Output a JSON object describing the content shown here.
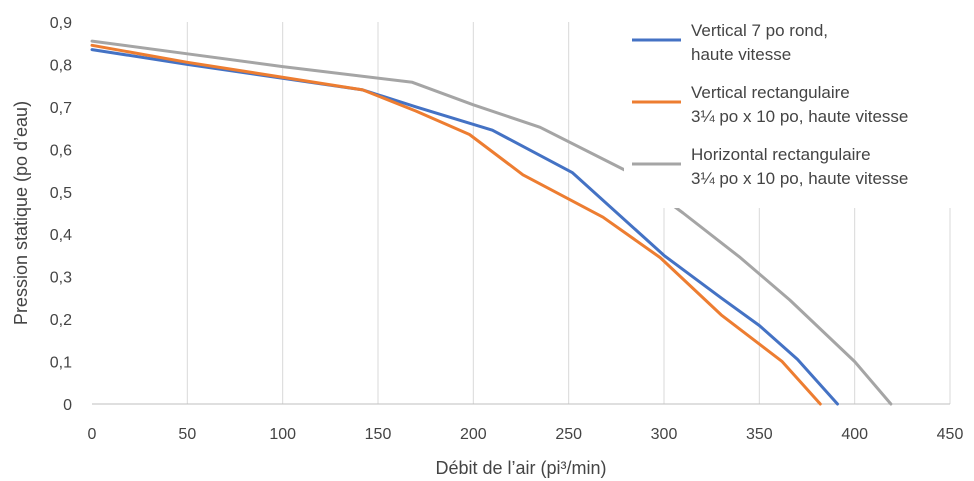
{
  "chart_data": {
    "type": "line",
    "title": "",
    "xlabel": "Débit de l’air (pi³/min)",
    "ylabel": "Pression statique  (po d’eau)",
    "xlim": [
      0,
      450
    ],
    "ylim": [
      0,
      0.9
    ],
    "x_ticks": [
      "0",
      "50",
      "100",
      "150",
      "200",
      "250",
      "300",
      "350",
      "400",
      "450"
    ],
    "y_ticks": [
      "0",
      "0,1",
      "0,2",
      "0,3",
      "0,4",
      "0,5",
      "0,6",
      "0,7",
      "0,8",
      "0,9"
    ],
    "grid": "vertical",
    "legend_position": "top-right",
    "series": [
      {
        "name": "Vertical 7 po rond, haute vitesse",
        "legend_lines": [
          "Vertical 7 po rond,",
          "haute vitesse"
        ],
        "color": "#4472C4",
        "points": [
          [
            0,
            0.835
          ],
          [
            50,
            0.8
          ],
          [
            142,
            0.74
          ],
          [
            170,
            0.7
          ],
          [
            210,
            0.645
          ],
          [
            252,
            0.545
          ],
          [
            300,
            0.35
          ],
          [
            330,
            0.25
          ],
          [
            350,
            0.185
          ],
          [
            370,
            0.105
          ],
          [
            391,
            0
          ]
        ]
      },
      {
        "name": "Vertical rectangulaire 3¼ po x 10 po, haute vitesse",
        "legend_lines": [
          "Vertical rectangulaire",
          "3¼ po x 10 po, haute vitesse"
        ],
        "color": "#ED7D31",
        "points": [
          [
            0,
            0.845
          ],
          [
            50,
            0.805
          ],
          [
            142,
            0.74
          ],
          [
            170,
            0.69
          ],
          [
            198,
            0.635
          ],
          [
            226,
            0.54
          ],
          [
            268,
            0.44
          ],
          [
            298,
            0.345
          ],
          [
            330,
            0.21
          ],
          [
            362,
            0.1
          ],
          [
            382,
            0
          ]
        ]
      },
      {
        "name": "Horizontal rectangulaire 3¼ po x 10 po, haute vitesse",
        "legend_lines": [
          "Horizontal rectangulaire",
          "3¼ po x 10 po, haute vitesse"
        ],
        "color": "#A5A5A5",
        "points": [
          [
            0,
            0.855
          ],
          [
            50,
            0.825
          ],
          [
            100,
            0.795
          ],
          [
            168,
            0.758
          ],
          [
            200,
            0.705
          ],
          [
            235,
            0.652
          ],
          [
            280,
            0.55
          ],
          [
            310,
            0.45
          ],
          [
            340,
            0.345
          ],
          [
            366,
            0.245
          ],
          [
            400,
            0.1
          ],
          [
            419,
            0
          ]
        ]
      }
    ]
  }
}
